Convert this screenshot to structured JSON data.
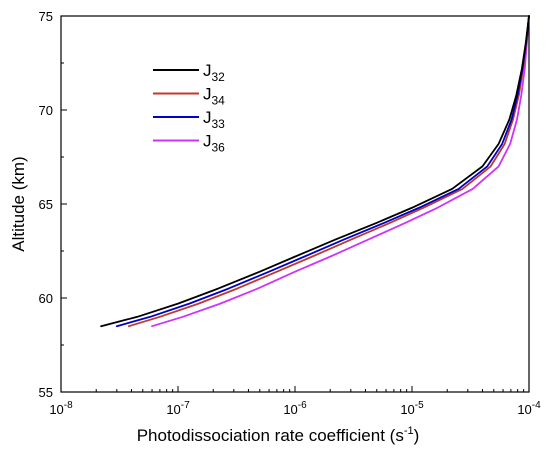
{
  "chart_data": {
    "type": "line",
    "title": "",
    "xlabel": "Photodissociation rate coefficient (s",
    "xlabel_sup": "-1",
    "xlabel_close": ")",
    "ylabel": "Altitude (km)",
    "xscale": "log",
    "xlim": [
      1e-08,
      0.0001
    ],
    "ylim": [
      55,
      75
    ],
    "grid": false,
    "legend_position": "top-left",
    "x_ticks": [
      {
        "value": 1e-08,
        "base": "10",
        "exp": "-8"
      },
      {
        "value": 1e-07,
        "base": "10",
        "exp": "-7"
      },
      {
        "value": 1e-06,
        "base": "10",
        "exp": "-6"
      },
      {
        "value": 1e-05,
        "base": "10",
        "exp": "-5"
      },
      {
        "value": 0.0001,
        "base": "10",
        "exp": "-4"
      }
    ],
    "y_ticks": [
      {
        "value": 55,
        "label": "55"
      },
      {
        "value": 60,
        "label": "60"
      },
      {
        "value": 65,
        "label": "65"
      },
      {
        "value": 70,
        "label": "70"
      },
      {
        "value": 75,
        "label": "75"
      }
    ],
    "series": [
      {
        "name": "J",
        "sub": "32",
        "color": "#000000",
        "points": [
          [
            2.2e-08,
            58.5
          ],
          [
            4.5e-08,
            59.0
          ],
          [
            1e-07,
            59.7
          ],
          [
            2.2e-07,
            60.5
          ],
          [
            5e-07,
            61.4
          ],
          [
            1e-06,
            62.2
          ],
          [
            2.2e-06,
            63.1
          ],
          [
            5e-06,
            64.0
          ],
          [
            1e-05,
            64.8
          ],
          [
            2.2e-05,
            65.8
          ],
          [
            4e-05,
            67.0
          ],
          [
            5.5e-05,
            68.2
          ],
          [
            6.8e-05,
            69.5
          ],
          [
            7.8e-05,
            70.8
          ],
          [
            8.7e-05,
            72.2
          ],
          [
            9.4e-05,
            73.6
          ],
          [
            0.0001,
            75.0
          ]
        ]
      },
      {
        "name": "J",
        "sub": "34",
        "color": "#c0392b",
        "points": [
          [
            3.8e-08,
            58.5
          ],
          [
            7e-08,
            59.0
          ],
          [
            1.5e-07,
            59.7
          ],
          [
            3.2e-07,
            60.5
          ],
          [
            7e-07,
            61.4
          ],
          [
            1.4e-06,
            62.2
          ],
          [
            3e-06,
            63.1
          ],
          [
            6.5e-06,
            64.0
          ],
          [
            1.25e-05,
            64.8
          ],
          [
            2.7e-05,
            65.8
          ],
          [
            4.7e-05,
            67.0
          ],
          [
            6.2e-05,
            68.2
          ],
          [
            7.3e-05,
            69.5
          ],
          [
            8.2e-05,
            70.8
          ],
          [
            8.9e-05,
            72.2
          ],
          [
            9.5e-05,
            73.6
          ],
          [
            0.0001,
            75.0
          ]
        ]
      },
      {
        "name": "J",
        "sub": "33",
        "color": "#0000cc",
        "points": [
          [
            3e-08,
            58.5
          ],
          [
            5.8e-08,
            59.0
          ],
          [
            1.25e-07,
            59.7
          ],
          [
            2.7e-07,
            60.5
          ],
          [
            6e-07,
            61.4
          ],
          [
            1.2e-06,
            62.2
          ],
          [
            2.6e-06,
            63.1
          ],
          [
            5.8e-06,
            64.0
          ],
          [
            1.15e-05,
            64.8
          ],
          [
            2.5e-05,
            65.8
          ],
          [
            4.4e-05,
            67.0
          ],
          [
            5.9e-05,
            68.2
          ],
          [
            7.1e-05,
            69.5
          ],
          [
            8e-05,
            70.8
          ],
          [
            8.8e-05,
            72.2
          ],
          [
            9.45e-05,
            73.6
          ],
          [
            0.0001,
            75.0
          ]
        ]
      },
      {
        "name": "J",
        "sub": "36",
        "color": "#cc33ff",
        "points": [
          [
            6e-08,
            58.5
          ],
          [
            1.1e-07,
            59.0
          ],
          [
            2.3e-07,
            59.7
          ],
          [
            4.8e-07,
            60.5
          ],
          [
            1e-06,
            61.4
          ],
          [
            2e-06,
            62.2
          ],
          [
            4.2e-06,
            63.1
          ],
          [
            8.8e-06,
            64.0
          ],
          [
            1.65e-05,
            64.8
          ],
          [
            3.3e-05,
            65.8
          ],
          [
            5.5e-05,
            67.0
          ],
          [
            6.9e-05,
            68.2
          ],
          [
            7.9e-05,
            69.5
          ],
          [
            8.6e-05,
            70.8
          ],
          [
            9.2e-05,
            72.2
          ],
          [
            9.6e-05,
            73.6
          ],
          [
            0.0001,
            75.0
          ]
        ]
      }
    ]
  }
}
